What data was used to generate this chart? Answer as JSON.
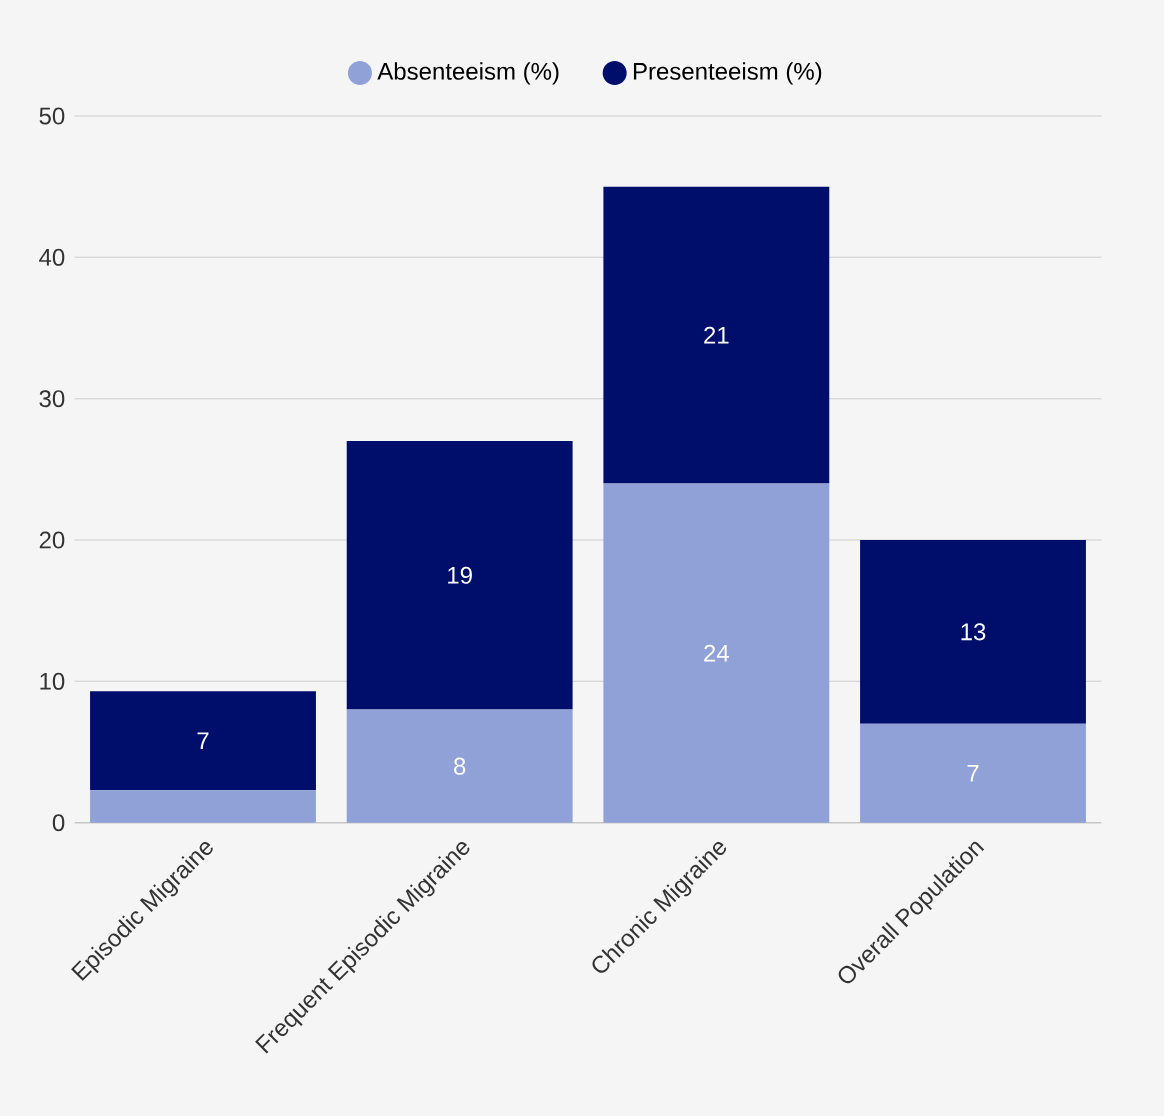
{
  "chart_data": {
    "type": "bar",
    "stacked": true,
    "categories": [
      "Episodic Migraine",
      "Frequent Episodic Migraine",
      "Chronic Migraine",
      "Overall Population"
    ],
    "series": [
      {
        "name": "Absenteeism (%)",
        "color": "#8fa1d6",
        "values": [
          2.3,
          8,
          24,
          7
        ],
        "value_labels": [
          null,
          "8",
          "24",
          "7"
        ]
      },
      {
        "name": "Presenteeism (%)",
        "color": "#000e6b",
        "values": [
          7,
          19,
          21,
          13
        ],
        "value_labels": [
          "7",
          "19",
          "21",
          "13"
        ]
      }
    ],
    "ylim": [
      0,
      50
    ],
    "yticks": [
      0,
      10,
      20,
      30,
      40,
      50
    ],
    "grid": "y",
    "legend": "top"
  }
}
